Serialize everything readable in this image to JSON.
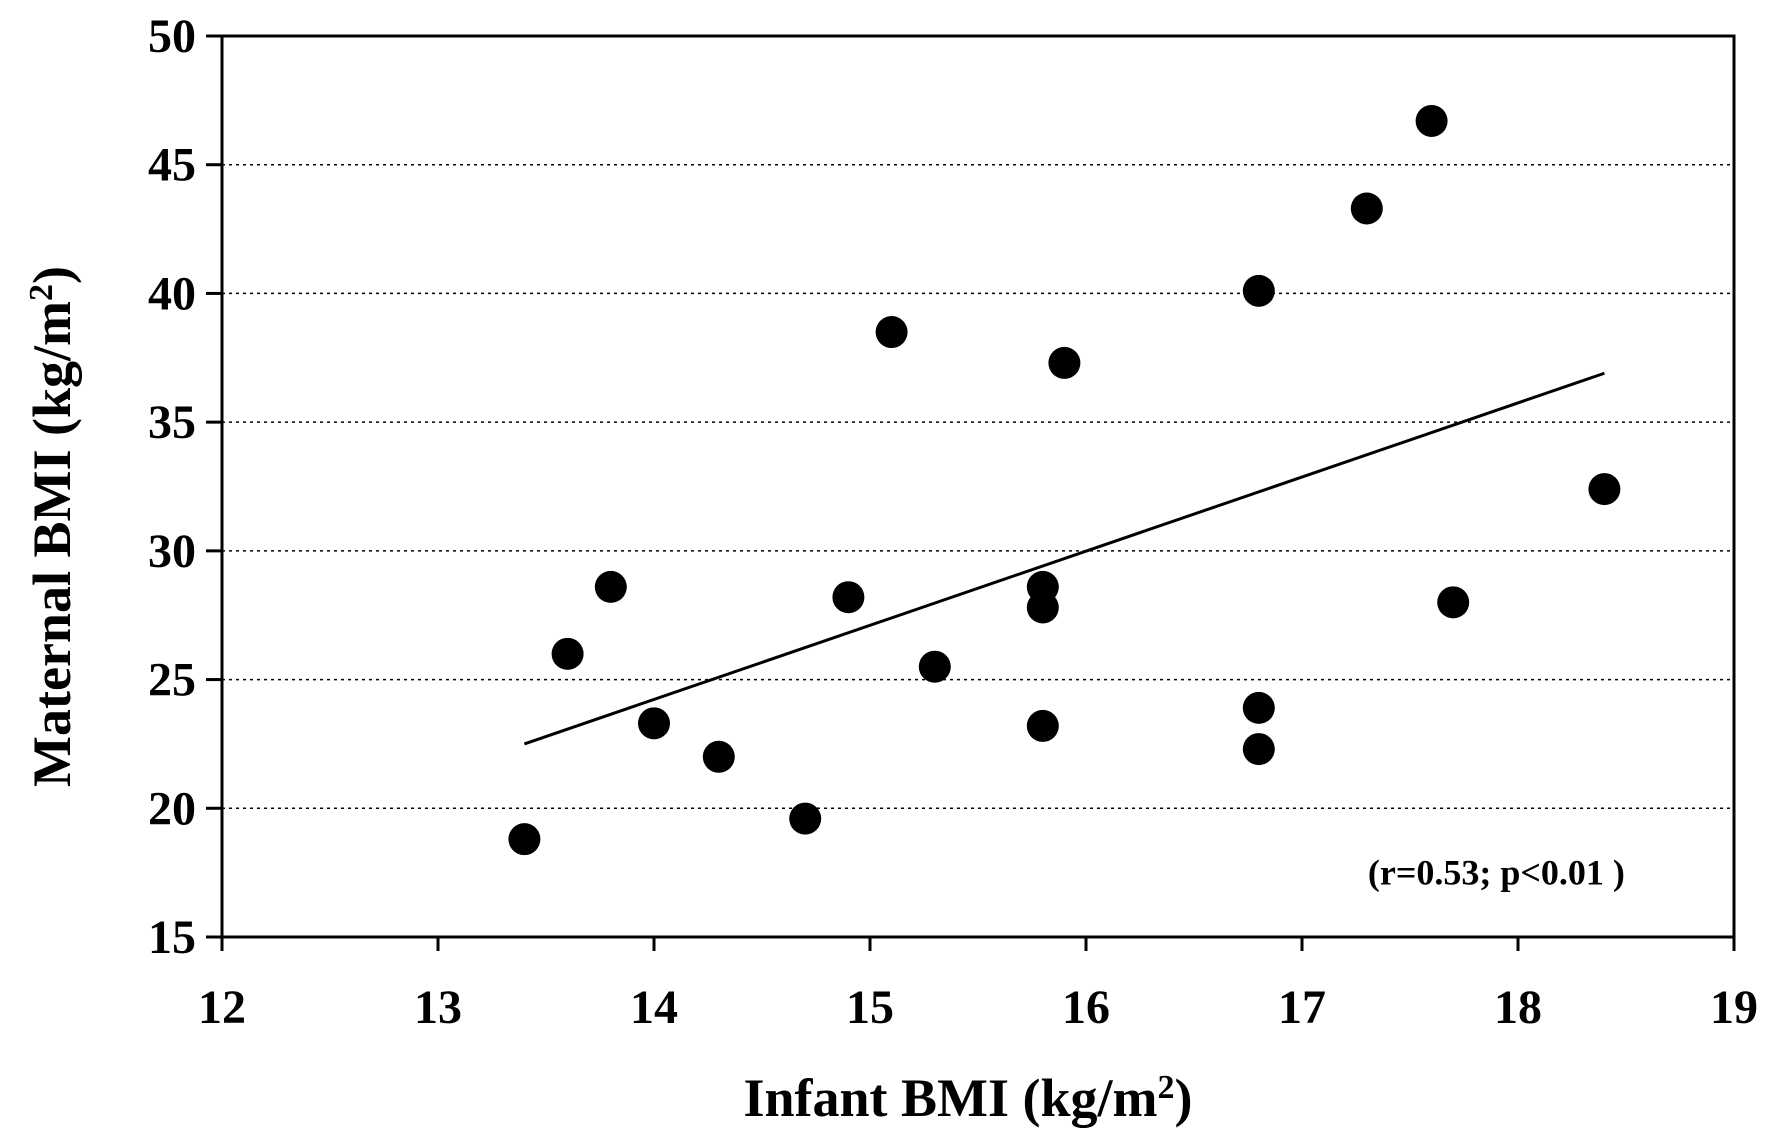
{
  "chart_data": {
    "type": "scatter",
    "xlabel": "Infant BMI (kg/m",
    "xlabel_sup": "2",
    "xlabel_end": ")",
    "ylabel": "Maternal BMI (kg/m",
    "ylabel_sup": "2",
    "ylabel_end": ")",
    "xlim": [
      12,
      19
    ],
    "ylim": [
      15,
      50
    ],
    "xticks": [
      12,
      13,
      14,
      15,
      16,
      17,
      18,
      19
    ],
    "yticks": [
      15,
      20,
      25,
      30,
      35,
      40,
      45,
      50
    ],
    "grid": "horizontal dotted",
    "points": [
      {
        "x": 13.4,
        "y": 18.8
      },
      {
        "x": 13.6,
        "y": 26.0
      },
      {
        "x": 13.8,
        "y": 28.6
      },
      {
        "x": 14.0,
        "y": 23.3
      },
      {
        "x": 14.3,
        "y": 22.0
      },
      {
        "x": 14.7,
        "y": 19.6
      },
      {
        "x": 14.9,
        "y": 28.2
      },
      {
        "x": 15.1,
        "y": 38.5
      },
      {
        "x": 15.3,
        "y": 25.5
      },
      {
        "x": 15.8,
        "y": 28.6
      },
      {
        "x": 15.8,
        "y": 27.8
      },
      {
        "x": 15.8,
        "y": 23.2
      },
      {
        "x": 15.9,
        "y": 37.3
      },
      {
        "x": 16.8,
        "y": 40.1
      },
      {
        "x": 16.8,
        "y": 23.9
      },
      {
        "x": 16.8,
        "y": 22.3
      },
      {
        "x": 17.3,
        "y": 43.3
      },
      {
        "x": 17.6,
        "y": 46.7
      },
      {
        "x": 17.7,
        "y": 28.0
      },
      {
        "x": 18.4,
        "y": 32.4
      }
    ],
    "trendline": {
      "x": [
        13.4,
        18.4
      ],
      "y": [
        22.5,
        36.9
      ]
    },
    "annotation": "(r=0.53; p<0.01 )",
    "colors": {
      "points": "#000000",
      "trendline": "#000000",
      "grid": "#000000"
    }
  }
}
